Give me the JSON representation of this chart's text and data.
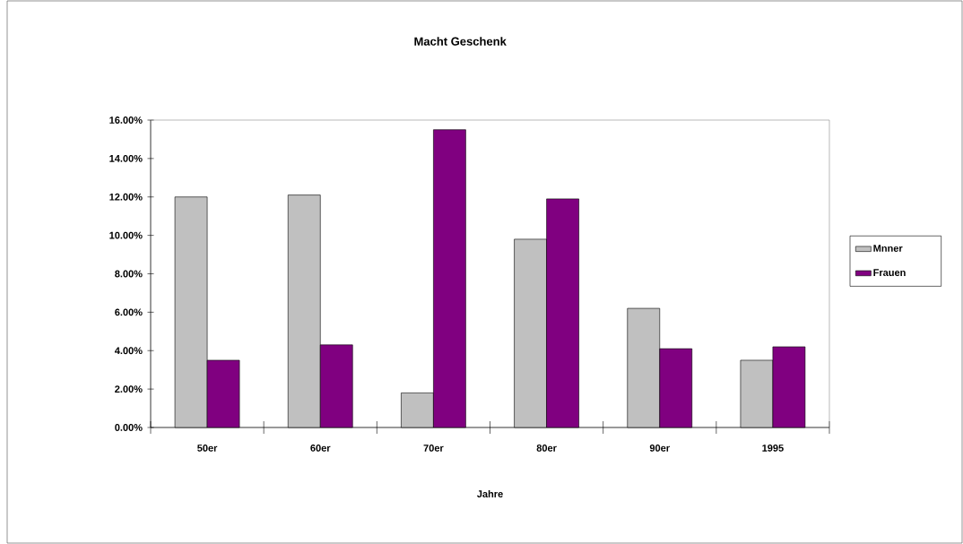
{
  "chart_data": {
    "type": "bar",
    "title": "Macht Geschenk",
    "xlabel": "Jahre",
    "categories": [
      "50er",
      "60er",
      "70er",
      "80er",
      "90er",
      "1995"
    ],
    "series": [
      {
        "name": "Mnner",
        "color": "#c0c0c0",
        "values": [
          12.0,
          12.1,
          1.8,
          9.8,
          6.2,
          3.5
        ]
      },
      {
        "name": "Frauen",
        "color": "#800080",
        "values": [
          3.5,
          4.3,
          15.5,
          11.9,
          4.1,
          4.2
        ]
      }
    ],
    "ylim": [
      0,
      16
    ],
    "yticks": [
      {
        "value": 0,
        "label": "0.00%"
      },
      {
        "value": 2,
        "label": "2.00%"
      },
      {
        "value": 4,
        "label": "4.00%"
      },
      {
        "value": 6,
        "label": "6.00%"
      },
      {
        "value": 8,
        "label": "8.00%"
      },
      {
        "value": 10,
        "label": "10.00%"
      },
      {
        "value": 12,
        "label": "12.00%"
      },
      {
        "value": 14,
        "label": "14.00%"
      },
      {
        "value": 16,
        "label": "16.00%"
      }
    ],
    "legend": "right"
  }
}
